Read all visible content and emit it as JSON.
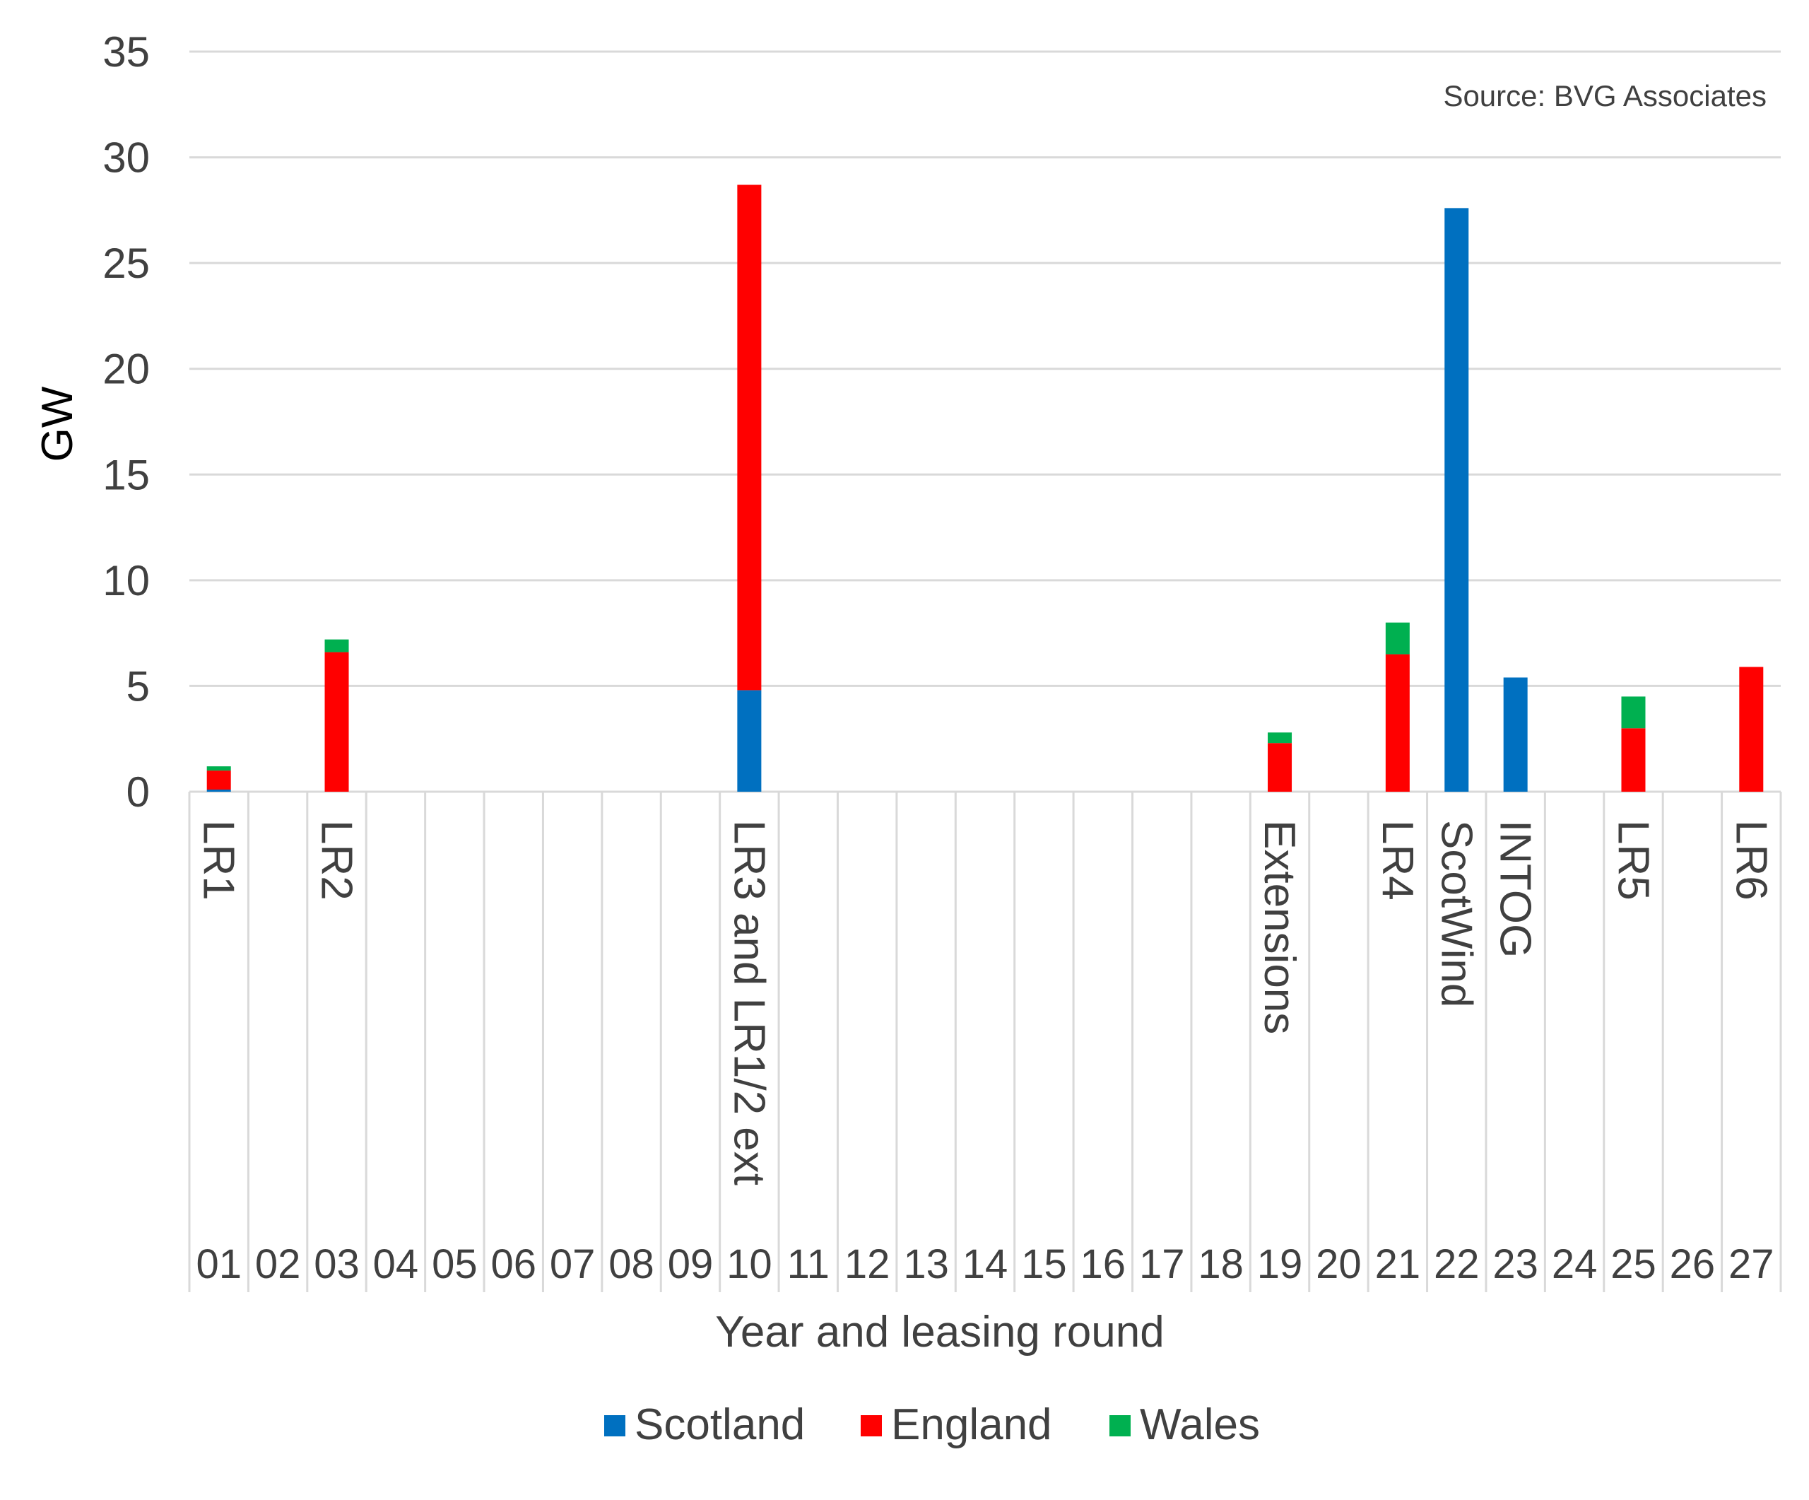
{
  "chart_data": {
    "type": "bar",
    "stacked": true,
    "source_note": "Source: BVG Associates",
    "ylabel": "GW",
    "xlabel": "Year and leasing round",
    "ylim": [
      0,
      35
    ],
    "yticks": [
      0,
      5,
      10,
      15,
      20,
      25,
      30,
      35
    ],
    "grid": true,
    "legend_position": "bottom",
    "categories": [
      "01",
      "02",
      "03",
      "04",
      "05",
      "06",
      "07",
      "08",
      "09",
      "10",
      "11",
      "12",
      "13",
      "14",
      "15",
      "16",
      "17",
      "18",
      "19",
      "20",
      "21",
      "22",
      "23",
      "24",
      "25",
      "26",
      "27"
    ],
    "rounds": [
      "LR1",
      "",
      "LR2",
      "",
      "",
      "",
      "",
      "",
      "",
      "LR3 and LR1/2 ext",
      "",
      "",
      "",
      "",
      "",
      "",
      "",
      "",
      "Extensions",
      "",
      "LR4",
      "ScotWind",
      "INTOG",
      "",
      "LR5",
      "",
      "LR6"
    ],
    "series": [
      {
        "name": "Scotland",
        "color": "#0070C0",
        "values": [
          0.1,
          0,
          0,
          0,
          0,
          0,
          0,
          0,
          0,
          4.8,
          0,
          0,
          0,
          0,
          0,
          0,
          0,
          0,
          0,
          0,
          0,
          27.6,
          5.4,
          0,
          0,
          0,
          0
        ]
      },
      {
        "name": "England",
        "color": "#FF0000",
        "values": [
          0.9,
          0,
          6.6,
          0,
          0,
          0,
          0,
          0,
          0,
          23.9,
          0,
          0,
          0,
          0,
          0,
          0,
          0,
          0,
          2.3,
          0,
          6.5,
          0,
          0,
          0,
          3.0,
          0,
          5.9
        ]
      },
      {
        "name": "Wales",
        "color": "#00B050",
        "values": [
          0.2,
          0,
          0.6,
          0,
          0,
          0,
          0,
          0,
          0,
          0,
          0,
          0,
          0,
          0,
          0,
          0,
          0,
          0,
          0.5,
          0,
          1.5,
          0,
          0,
          0,
          1.5,
          0,
          0
        ]
      }
    ]
  }
}
